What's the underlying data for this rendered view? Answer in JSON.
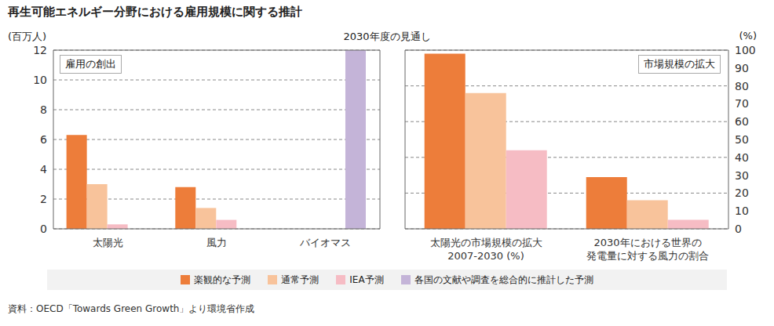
{
  "title": "再生可能エネルギー分野における雇用規模に関する推計",
  "subtitle": "2030年度の見通し",
  "source": "資料：OECD「Towards Green Growth」より環境省作成",
  "legend": "bottom",
  "chart_data": [
    {
      "type": "bar",
      "title": "雇用の創出",
      "y_label": "(百万人)",
      "categories": [
        "太陽光",
        "風力",
        "バイオマス"
      ],
      "series": [
        {
          "name": "楽観的な予測",
          "color": "#ed7d3a",
          "values": [
            6.3,
            2.8,
            null
          ]
        },
        {
          "name": "通常予測",
          "color": "#f8c39b",
          "values": [
            3.0,
            1.4,
            null
          ]
        },
        {
          "name": "IEA予測",
          "color": "#f6bcc4",
          "values": [
            0.3,
            0.6,
            null
          ]
        },
        {
          "name": "各国の文献や調査を総合的に推計した予測",
          "color": "#c4b4d8",
          "values": [
            null,
            null,
            12
          ]
        }
      ],
      "ylim": [
        0,
        12
      ],
      "yticks": [
        0,
        2,
        4,
        6,
        8,
        10,
        12
      ],
      "grid": true
    },
    {
      "type": "bar",
      "title": "市場規模の拡大",
      "y_label": "(%)",
      "categories": [
        "太陽光の市場規模の拡大\n2007-2030 (%)",
        "2030年における世界の\n発電量に対する風力の割合"
      ],
      "series": [
        {
          "name": "楽観的な予測",
          "color": "#ed7d3a",
          "values": [
            98,
            29
          ]
        },
        {
          "name": "通常予測",
          "color": "#f8c39b",
          "values": [
            76,
            16
          ]
        },
        {
          "name": "IEA予測",
          "color": "#f6bcc4",
          "values": [
            44,
            5
          ]
        }
      ],
      "ylim": [
        0,
        100
      ],
      "yticks": [
        0,
        10,
        20,
        30,
        40,
        50,
        60,
        70,
        80,
        90,
        100
      ],
      "grid": true
    }
  ]
}
